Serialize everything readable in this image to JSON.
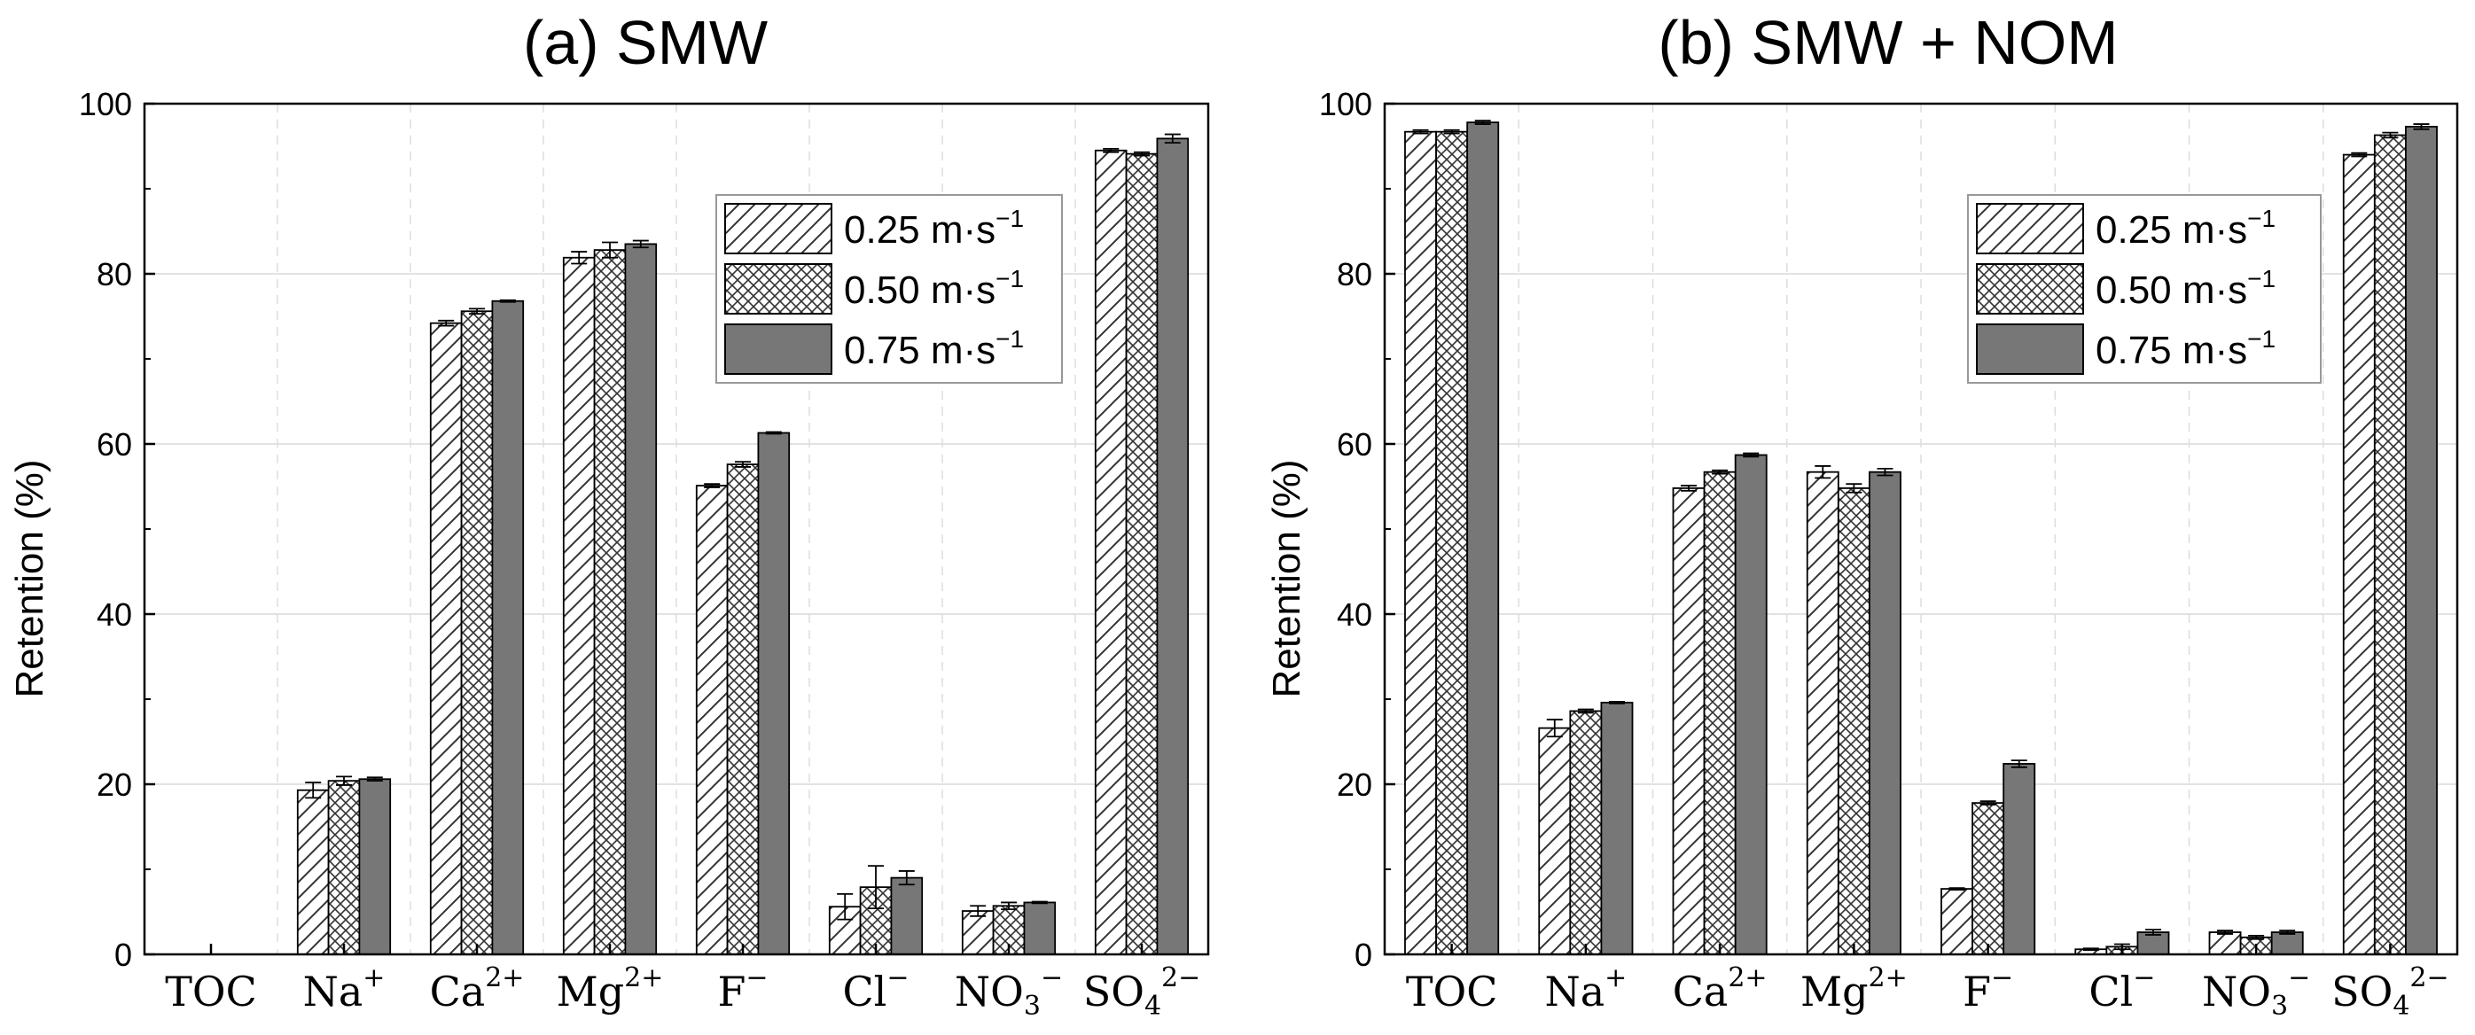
{
  "chart_data": [
    {
      "type": "bar",
      "title": "(a) SMW",
      "xlabel": "",
      "ylabel": "Retention (%)",
      "ylim": [
        0,
        100
      ],
      "yticks": [
        0,
        20,
        40,
        60,
        80,
        100
      ],
      "grid": true,
      "legend_position": "top-right",
      "categories": [
        {
          "base": "TOC",
          "sub": "",
          "sup": ""
        },
        {
          "base": "Na",
          "sub": "",
          "sup": "+"
        },
        {
          "base": "Ca",
          "sub": "",
          "sup": "2+"
        },
        {
          "base": "Mg",
          "sub": "",
          "sup": "2+"
        },
        {
          "base": "F",
          "sub": "",
          "sup": "−"
        },
        {
          "base": "Cl",
          "sub": "",
          "sup": "−"
        },
        {
          "base": "NO",
          "sub": "3",
          "sup": "−"
        },
        {
          "base": "SO",
          "sub": "4",
          "sup": "2−"
        }
      ],
      "series": [
        {
          "name": "0.25 m·s",
          "name_sup": "−1",
          "fill": "hatch",
          "values": [
            0,
            19.3,
            74.2,
            81.9,
            55.1,
            5.6,
            5.1,
            94.5
          ],
          "errors": [
            0,
            0.9,
            0.3,
            0.7,
            0.2,
            1.5,
            0.6,
            0.2
          ]
        },
        {
          "name": "0.50 m·s",
          "name_sup": "−1",
          "fill": "crosshatch",
          "values": [
            0,
            20.4,
            75.6,
            82.8,
            57.6,
            7.9,
            5.7,
            94.1
          ],
          "errors": [
            0,
            0.5,
            0.3,
            0.9,
            0.3,
            2.5,
            0.4,
            0.2
          ]
        },
        {
          "name": "0.75 m·s",
          "name_sup": "−1",
          "fill": "solid",
          "values": [
            0,
            20.6,
            76.8,
            83.5,
            61.3,
            9.0,
            6.1,
            95.9
          ],
          "errors": [
            0,
            0.2,
            0.1,
            0.4,
            0.1,
            0.8,
            0.1,
            0.5
          ]
        }
      ]
    },
    {
      "type": "bar",
      "title": "(b) SMW + NOM",
      "xlabel": "",
      "ylabel": "Retention (%)",
      "ylim": [
        0,
        100
      ],
      "yticks": [
        0,
        20,
        40,
        60,
        80,
        100
      ],
      "grid": true,
      "legend_position": "top-right",
      "categories": [
        {
          "base": "TOC",
          "sub": "",
          "sup": ""
        },
        {
          "base": "Na",
          "sub": "",
          "sup": "+"
        },
        {
          "base": "Ca",
          "sub": "",
          "sup": "2+"
        },
        {
          "base": "Mg",
          "sub": "",
          "sup": "2+"
        },
        {
          "base": "F",
          "sub": "",
          "sup": "−"
        },
        {
          "base": "Cl",
          "sub": "",
          "sup": "−"
        },
        {
          "base": "NO",
          "sub": "3",
          "sup": "−"
        },
        {
          "base": "SO",
          "sub": "4",
          "sup": "2−"
        }
      ],
      "series": [
        {
          "name": "0.25 m·s",
          "name_sup": "−1",
          "fill": "hatch",
          "values": [
            96.7,
            26.6,
            54.8,
            56.7,
            7.7,
            0.6,
            2.6,
            94.0
          ],
          "errors": [
            0.2,
            1.0,
            0.3,
            0.7,
            0.1,
            0.1,
            0.2,
            0.2
          ]
        },
        {
          "name": "0.50 m·s",
          "name_sup": "−1",
          "fill": "crosshatch",
          "values": [
            96.7,
            28.6,
            56.7,
            54.8,
            17.8,
            0.9,
            2.0,
            96.3
          ],
          "errors": [
            0.2,
            0.2,
            0.2,
            0.5,
            0.2,
            0.3,
            0.2,
            0.3
          ]
        },
        {
          "name": "0.75 m·s",
          "name_sup": "−1",
          "fill": "solid",
          "values": [
            97.8,
            29.6,
            58.7,
            56.7,
            22.4,
            2.6,
            2.6,
            97.3
          ],
          "errors": [
            0.2,
            0.1,
            0.2,
            0.4,
            0.4,
            0.3,
            0.2,
            0.3
          ]
        }
      ]
    }
  ]
}
